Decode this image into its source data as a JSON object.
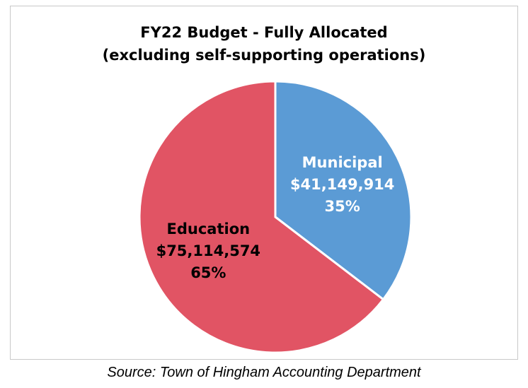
{
  "chart_data": {
    "type": "pie",
    "title": "FY22 Budget - Fully Allocated",
    "subtitle": "(excluding self-supporting operations)",
    "slices": [
      {
        "name": "Municipal",
        "value": 41149914,
        "value_label": "$41,149,914",
        "percent_label": "35%",
        "color": "#5b9bd5",
        "label_color": "#ffffff"
      },
      {
        "name": "Education",
        "value": 75114574,
        "value_label": "$75,114,574",
        "percent_label": "65%",
        "color": "#e15464",
        "label_color": "#000000"
      }
    ],
    "start_angle_deg": 0,
    "direction": "clockwise",
    "slice_border_color": "#ffffff"
  },
  "source": "Source: Town of Hingham Accounting Department"
}
